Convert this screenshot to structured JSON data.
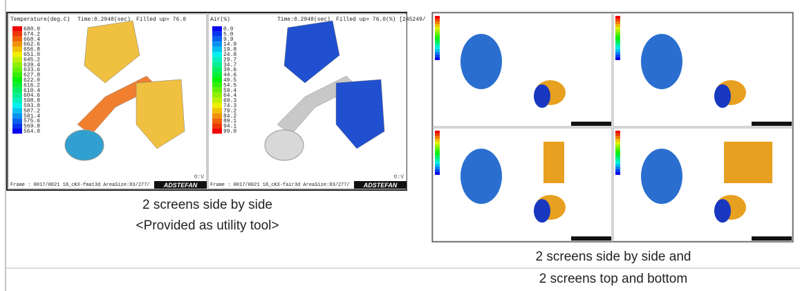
{
  "left_figure": {
    "panels": [
      {
        "header": {
          "quantity": "Temperature(deg.C)",
          "time": "Time:0.2948(sec)",
          "filled": "Filled up= 76.0"
        },
        "legend": [
          "680.0",
          "674.2",
          "668.4",
          "662.6",
          "656.8",
          "651.0",
          "645.2",
          "639.4",
          "633.6",
          "627.8",
          "622.0",
          "616.2",
          "610.4",
          "604.6",
          "598.8",
          "593.0",
          "587.2",
          "581.4",
          "575.6",
          "569.8",
          "564.0"
        ],
        "view": "0:V",
        "footer": "Frame : 0017/0021  18_cKX-fmat3d  AreaSize:83/277/",
        "logo": "ADSTEFAN"
      },
      {
        "header": {
          "quantity": "Air(%)",
          "time": "Time:0.2948(sec)",
          "filled": "Filled up= 76.0(%) [245249/"
        },
        "legend": [
          "0.0",
          "5.0",
          "9.9",
          "14.9",
          "19.8",
          "24.8",
          "29.7",
          "34.7",
          "39.6",
          "44.6",
          "49.5",
          "54.5",
          "59.4",
          "64.4",
          "69.3",
          "74.3",
          "79.2",
          "84.2",
          "89.1",
          "94.1",
          "99.0"
        ],
        "view": "0:V",
        "footer": "Frame : 0017/0021  18_cKX-fair3d  AreaSize:83/277/",
        "logo": "ADSTEFAN"
      }
    ],
    "caption": [
      "2 screens side by side",
      "<Provided as utility tool>"
    ]
  },
  "right_figure": {
    "caption": [
      "2 screens side by side and",
      "2 screens top and bottom"
    ]
  }
}
